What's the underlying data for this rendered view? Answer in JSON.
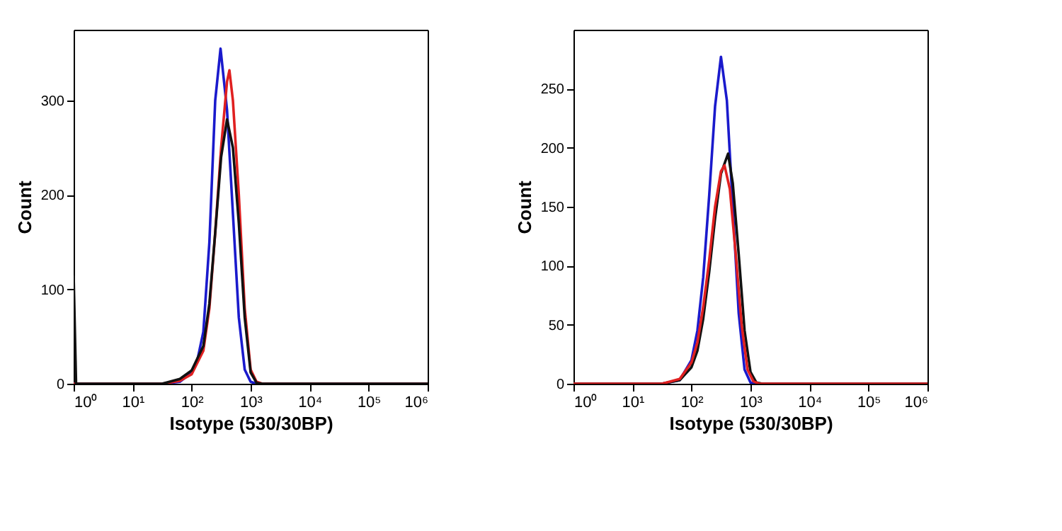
{
  "chart_data": [
    {
      "type": "line",
      "xlabel": "Isotype (530/30BP)",
      "ylabel": "Count",
      "log": "x",
      "grid": false,
      "marker": "none",
      "line_style": "solid",
      "xlim": [
        1,
        1000000
      ],
      "ylim": [
        0,
        375
      ],
      "xticks": [
        {
          "value": 1,
          "label": "10⁰"
        },
        {
          "value": 10,
          "label": "10¹"
        },
        {
          "value": 100,
          "label": "10²"
        },
        {
          "value": 1000,
          "label": "10³"
        },
        {
          "value": 10000,
          "label": "10⁴"
        },
        {
          "value": 100000,
          "label": "10⁵"
        },
        {
          "value": 1000000,
          "label": "10⁶"
        }
      ],
      "yticks": [
        0,
        100,
        200,
        300
      ],
      "series": [
        {
          "color": "#1a1acc",
          "x": [
            1,
            31.6,
            63,
            100,
            126,
            158,
            200,
            251,
            309,
            398,
            501,
            631,
            794,
            1000,
            1259,
            1000000
          ],
          "values": [
            0,
            0,
            2,
            12,
            26,
            55,
            150,
            300,
            355,
            290,
            180,
            70,
            15,
            2,
            0,
            0
          ]
        },
        {
          "color": "#e02020",
          "x": [
            1,
            31.6,
            63,
            100,
            158,
            200,
            251,
            316,
            398,
            437,
            501,
            631,
            794,
            1000,
            1259,
            1585,
            1000000
          ],
          "values": [
            0,
            0,
            3,
            10,
            35,
            80,
            160,
            250,
            320,
            332,
            300,
            200,
            80,
            15,
            2,
            0,
            0
          ]
        },
        {
          "color": "#111111",
          "x": [
            1,
            1.1,
            31.6,
            63,
            100,
            158,
            200,
            251,
            316,
            398,
            501,
            631,
            794,
            1000,
            1259,
            1585,
            1000000
          ],
          "values": [
            115,
            0,
            0,
            5,
            14,
            40,
            85,
            160,
            240,
            280,
            250,
            170,
            70,
            12,
            1,
            0,
            0
          ]
        }
      ]
    },
    {
      "type": "line",
      "xlabel": "Isotype (530/30BP)",
      "ylabel": "Count",
      "log": "x",
      "grid": false,
      "marker": "none",
      "line_style": "solid",
      "xlim": [
        1,
        1000000
      ],
      "ylim": [
        0,
        300
      ],
      "xticks": [
        {
          "value": 1,
          "label": "10⁰"
        },
        {
          "value": 10,
          "label": "10¹"
        },
        {
          "value": 100,
          "label": "10²"
        },
        {
          "value": 1000,
          "label": "10³"
        },
        {
          "value": 10000,
          "label": "10⁴"
        },
        {
          "value": 100000,
          "label": "10⁵"
        },
        {
          "value": 1000000,
          "label": "10⁶"
        }
      ],
      "yticks": [
        0,
        50,
        100,
        150,
        200,
        250
      ],
      "series": [
        {
          "color": "#1a1acc",
          "x": [
            1,
            31.6,
            63,
            100,
            126,
            158,
            200,
            251,
            316,
            398,
            501,
            631,
            794,
            1000,
            1259,
            1000000
          ],
          "values": [
            0,
            0,
            3,
            20,
            45,
            90,
            160,
            235,
            277,
            240,
            150,
            60,
            12,
            1,
            0,
            0
          ]
        },
        {
          "color": "#111111",
          "x": [
            1,
            31.6,
            63,
            100,
            126,
            158,
            200,
            251,
            316,
            417,
            501,
            631,
            794,
            1000,
            1259,
            1585,
            1000000
          ],
          "values": [
            0,
            0,
            3,
            14,
            28,
            55,
            95,
            140,
            178,
            195,
            170,
            110,
            45,
            10,
            1,
            0,
            0
          ]
        },
        {
          "color": "#e02020",
          "x": [
            1,
            31.6,
            63,
            100,
            126,
            158,
            200,
            251,
            316,
            363,
            447,
            562,
            708,
            891,
            1122,
            1413,
            1000000
          ],
          "values": [
            0,
            0,
            4,
            18,
            35,
            65,
            105,
            150,
            180,
            185,
            165,
            110,
            50,
            12,
            2,
            0,
            0
          ]
        }
      ]
    }
  ]
}
